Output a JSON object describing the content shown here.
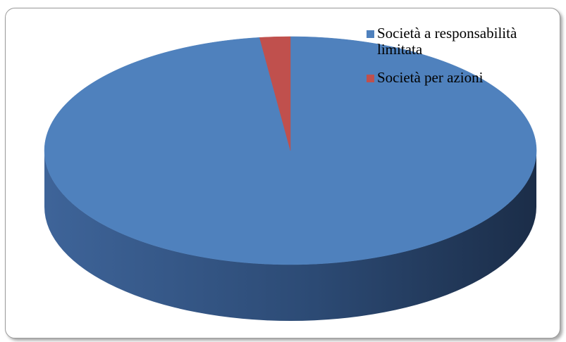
{
  "chart_data": {
    "type": "pie",
    "title": "",
    "series": [
      {
        "name": "Società a responsabilità limitata",
        "value": 98,
        "color": "#4f81bd"
      },
      {
        "name": "Società per azioni",
        "value": 2,
        "color": "#c0504d"
      }
    ],
    "style": "3d",
    "legend_position": "top-right"
  }
}
